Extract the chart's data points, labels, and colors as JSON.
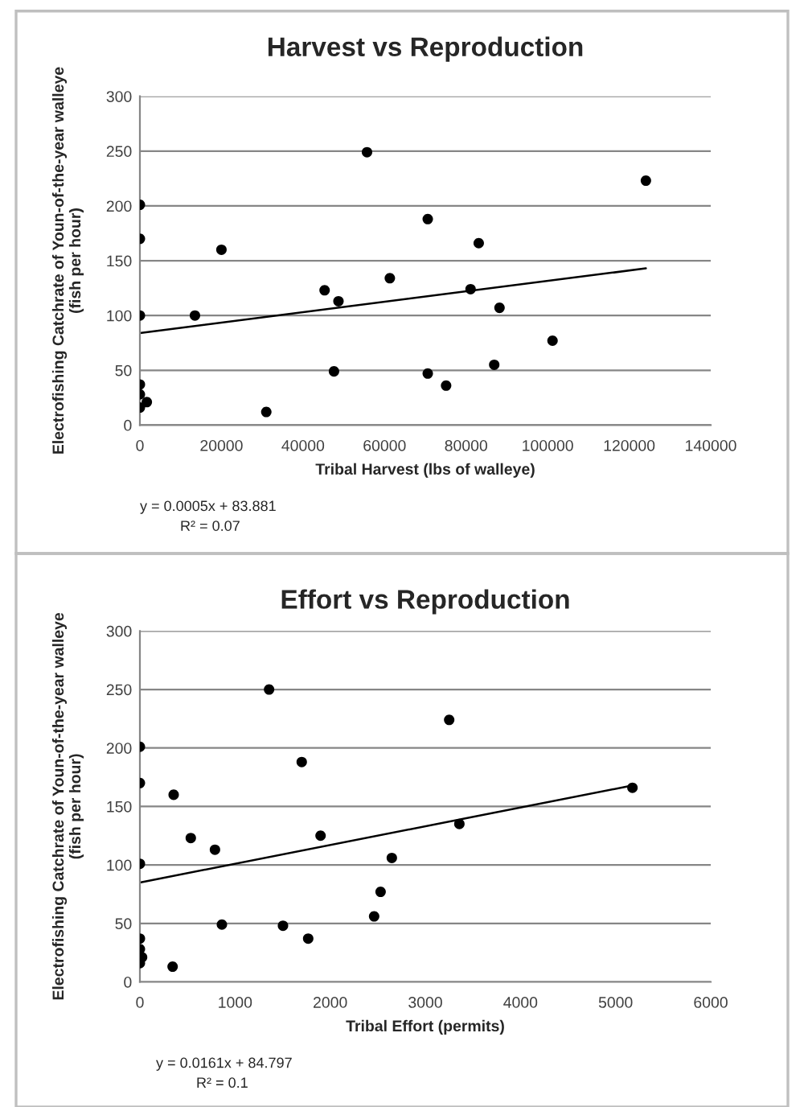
{
  "chart_data": [
    {
      "type": "scatter",
      "title": "Harvest vs Reproduction",
      "xlabel": "Tribal Harvest (lbs of walleye)",
      "ylabel": "Electrofishing Catchrate of Youn-of-the-year walleye\n(fish per hour)",
      "xlim": [
        0,
        140000
      ],
      "xticks": [
        0,
        20000,
        40000,
        60000,
        80000,
        100000,
        120000,
        140000
      ],
      "ylim": [
        0,
        300
      ],
      "yticks": [
        0,
        50,
        100,
        150,
        200,
        250,
        300
      ],
      "grid": "y",
      "series": [
        {
          "marker": "circle",
          "color": "#000000",
          "x": [
            0,
            0,
            0,
            0,
            0,
            0,
            1700,
            13500,
            20000,
            31000,
            45300,
            47600,
            48700,
            55700,
            61300,
            70600,
            70600,
            75100,
            81100,
            83100,
            86900,
            88200,
            101200,
            124100
          ],
          "values": [
            201,
            170,
            100,
            37,
            28,
            16,
            21,
            100,
            160,
            12,
            123,
            49,
            113,
            249,
            134,
            188,
            47,
            36,
            124,
            166,
            55,
            107,
            77,
            223
          ]
        },
        {
          "type": "line",
          "marker": "none",
          "color": "#000000",
          "x": [
            0,
            124100
          ],
          "values": [
            84,
            143
          ]
        }
      ],
      "annotations": [
        "y = 0.0005x + 83.881",
        "R² = 0.07"
      ]
    },
    {
      "type": "scatter",
      "title": "Effort vs Reproduction",
      "xlabel": "Tribal Effort (permits)",
      "ylabel": "Electrofishing Catchrate of Youn-of-the-year walleye\n(fish per hour)",
      "xlim": [
        0,
        6000
      ],
      "xticks": [
        0,
        1000,
        2000,
        3000,
        4000,
        5000,
        6000
      ],
      "ylim": [
        0,
        300
      ],
      "yticks": [
        0,
        50,
        100,
        150,
        200,
        250,
        300
      ],
      "grid": "y",
      "series": [
        {
          "marker": "circle",
          "color": "#000000",
          "x": [
            0,
            0,
            0,
            0,
            0,
            0,
            23,
            344,
            355,
            535,
            789,
            862,
            1358,
            1504,
            1701,
            1769,
            1899,
            2462,
            2530,
            2648,
            3251,
            3358,
            5177
          ],
          "values": [
            201,
            170,
            101,
            37,
            28,
            16,
            21,
            13,
            160,
            123,
            113,
            49,
            250,
            48,
            188,
            37,
            125,
            56,
            77,
            106,
            224,
            135,
            166
          ]
        },
        {
          "type": "line",
          "marker": "none",
          "color": "#000000",
          "x": [
            0,
            5180
          ],
          "values": [
            85,
            168
          ]
        }
      ],
      "annotations": [
        "y = 0.0161x + 84.797",
        "R² = 0.1"
      ]
    }
  ]
}
